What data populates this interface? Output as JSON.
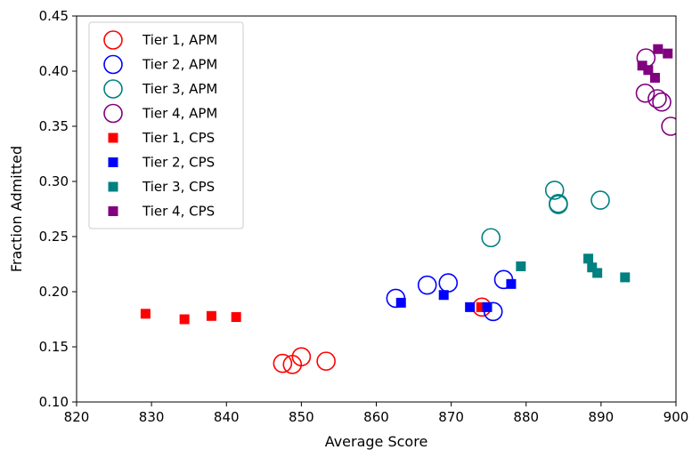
{
  "chart_data": {
    "type": "scatter",
    "title": "",
    "xlabel": "Average Score",
    "ylabel": "Fraction Admitted",
    "xlim": [
      820,
      900
    ],
    "ylim": [
      0.1,
      0.45
    ],
    "xticks": [
      "820",
      "830",
      "840",
      "850",
      "860",
      "870",
      "880",
      "890",
      "900"
    ],
    "yticks": [
      "0.10",
      "0.15",
      "0.20",
      "0.25",
      "0.30",
      "0.35",
      "0.40",
      "0.45"
    ],
    "grid": false,
    "legend_position": "top-left",
    "series": [
      {
        "name": "Tier 1, APM",
        "marker": "open-circle",
        "color": "#ff0000",
        "points": [
          [
            847.5,
            0.135
          ],
          [
            848.8,
            0.134
          ],
          [
            850.0,
            0.141
          ],
          [
            853.3,
            0.137
          ],
          [
            874.1,
            0.186
          ]
        ]
      },
      {
        "name": "Tier 2, APM",
        "marker": "open-circle",
        "color": "#0000ff",
        "points": [
          [
            862.6,
            0.194
          ],
          [
            866.8,
            0.206
          ],
          [
            869.6,
            0.208
          ],
          [
            875.6,
            0.182
          ],
          [
            877.0,
            0.211
          ]
        ]
      },
      {
        "name": "Tier 3, APM",
        "marker": "open-circle",
        "color": "#008080",
        "points": [
          [
            875.3,
            0.249
          ],
          [
            883.8,
            0.292
          ],
          [
            884.3,
            0.28
          ],
          [
            884.3,
            0.279
          ],
          [
            889.9,
            0.283
          ]
        ]
      },
      {
        "name": "Tier 4, APM",
        "marker": "open-circle",
        "color": "#800080",
        "points": [
          [
            896.0,
            0.412
          ],
          [
            895.9,
            0.38
          ],
          [
            897.5,
            0.375
          ],
          [
            898.1,
            0.372
          ],
          [
            899.3,
            0.35
          ]
        ]
      },
      {
        "name": "Tier 1, CPS",
        "marker": "filled-square",
        "color": "#ff0000",
        "points": [
          [
            829.2,
            0.18
          ],
          [
            834.4,
            0.175
          ],
          [
            838.0,
            0.178
          ],
          [
            841.3,
            0.177
          ],
          [
            874.0,
            0.186
          ]
        ]
      },
      {
        "name": "Tier 2, CPS",
        "marker": "filled-square",
        "color": "#0000ff",
        "points": [
          [
            863.3,
            0.19
          ],
          [
            869.0,
            0.197
          ],
          [
            872.5,
            0.186
          ],
          [
            874.8,
            0.186
          ],
          [
            878.0,
            0.207
          ]
        ]
      },
      {
        "name": "Tier 3, CPS",
        "marker": "filled-square",
        "color": "#008080",
        "points": [
          [
            879.3,
            0.223
          ],
          [
            888.3,
            0.23
          ],
          [
            888.8,
            0.222
          ],
          [
            889.5,
            0.217
          ],
          [
            893.2,
            0.213
          ]
        ]
      },
      {
        "name": "Tier 4, CPS",
        "marker": "filled-square",
        "color": "#800080",
        "points": [
          [
            895.5,
            0.405
          ],
          [
            896.3,
            0.401
          ],
          [
            897.2,
            0.394
          ],
          [
            897.6,
            0.42
          ],
          [
            898.9,
            0.416
          ]
        ]
      }
    ]
  }
}
